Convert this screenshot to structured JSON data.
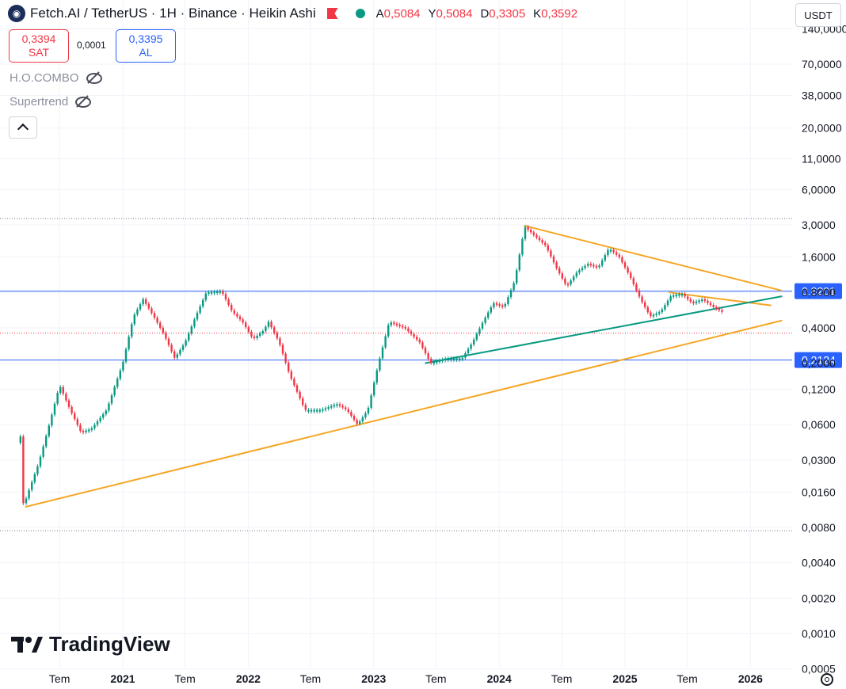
{
  "header": {
    "symbol": "Fetch.AI / TetherUS · 1H · Binance · Heikin Ashi",
    "ohlc": [
      {
        "k": "A",
        "v": "0,5084"
      },
      {
        "k": "Y",
        "v": "0,5084"
      },
      {
        "k": "D",
        "v": "0,3305"
      },
      {
        "k": "K",
        "v": "0,3592"
      }
    ]
  },
  "trade": {
    "sell_price": "0,3394",
    "sell_label": "SAT",
    "spread": "0,0001",
    "buy_price": "0,3395",
    "buy_label": "AL"
  },
  "indicators": [
    {
      "name": "H.O.COMBO",
      "state": "hidden"
    },
    {
      "name": "Supertrend",
      "state": "hidden"
    }
  ],
  "currency": "USDT",
  "branding": "TradingView",
  "colors": {
    "up": "#089981",
    "down": "#f23645",
    "triangle_lines": "#f5a623",
    "support_line": "#089981",
    "horizontal_levels": "#2962ff",
    "axis_text": "#131722"
  },
  "chart_data": {
    "type": "candlestick",
    "yscale": "log",
    "price_axis_labels": [
      "140,0000",
      "70,0000",
      "38,0000",
      "20,0000",
      "11,0000",
      "6,0000",
      "3,0000",
      "1,6000",
      "0,8000",
      "0,4000",
      "0,2000",
      "0,1200",
      "0,0600",
      "0,0300",
      "0,0160",
      "0,0080",
      "0,0040",
      "0,0020",
      "0,0010",
      "0,0005"
    ],
    "time_axis_labels": [
      "Tem",
      "2021",
      "Tem",
      "2022",
      "Tem",
      "2023",
      "Tem",
      "2024",
      "Tem",
      "2025",
      "Tem",
      "2026"
    ],
    "price_badges": [
      {
        "label": "0,8201",
        "value": 0.8201
      },
      {
        "label": "0,2124",
        "value": 0.2124
      }
    ],
    "dotted_levels": [
      3.4,
      0.36,
      0.0075
    ],
    "path": [
      [
        "2020-03-01",
        0.042
      ],
      [
        "2020-03-10",
        0.048
      ],
      [
        "2020-03-18",
        0.012
      ],
      [
        "2020-04-01",
        0.016
      ],
      [
        "2020-05-01",
        0.028
      ],
      [
        "2020-06-01",
        0.06
      ],
      [
        "2020-07-01",
        0.13
      ],
      [
        "2020-08-01",
        0.08
      ],
      [
        "2020-09-01",
        0.052
      ],
      [
        "2020-10-01",
        0.055
      ],
      [
        "2020-11-15",
        0.08
      ],
      [
        "2021-01-01",
        0.2
      ],
      [
        "2021-02-01",
        0.5
      ],
      [
        "2021-03-01",
        0.7
      ],
      [
        "2021-04-01",
        0.5
      ],
      [
        "2021-05-01",
        0.35
      ],
      [
        "2021-06-01",
        0.22
      ],
      [
        "2021-07-01",
        0.3
      ],
      [
        "2021-08-01",
        0.5
      ],
      [
        "2021-09-01",
        0.8
      ],
      [
        "2021-10-15",
        0.82
      ],
      [
        "2021-11-15",
        0.55
      ],
      [
        "2021-12-15",
        0.45
      ],
      [
        "2022-01-15",
        0.32
      ],
      [
        "2022-02-15",
        0.38
      ],
      [
        "2022-03-01",
        0.45
      ],
      [
        "2022-04-01",
        0.3
      ],
      [
        "2022-05-01",
        0.16
      ],
      [
        "2022-06-15",
        0.08
      ],
      [
        "2022-08-01",
        0.08
      ],
      [
        "2022-09-15",
        0.09
      ],
      [
        "2022-10-15",
        0.08
      ],
      [
        "2022-11-15",
        0.06
      ],
      [
        "2022-12-15",
        0.08
      ],
      [
        "2023-01-15",
        0.2
      ],
      [
        "2023-02-15",
        0.45
      ],
      [
        "2023-04-01",
        0.4
      ],
      [
        "2023-05-15",
        0.3
      ],
      [
        "2023-06-15",
        0.2
      ],
      [
        "2023-08-01",
        0.22
      ],
      [
        "2023-09-15",
        0.22
      ],
      [
        "2023-10-15",
        0.3
      ],
      [
        "2023-11-15",
        0.45
      ],
      [
        "2023-12-15",
        0.65
      ],
      [
        "2024-01-15",
        0.6
      ],
      [
        "2024-02-15",
        1.0
      ],
      [
        "2024-03-15",
        2.9
      ],
      [
        "2024-04-15",
        2.4
      ],
      [
        "2024-05-15",
        2.0
      ],
      [
        "2024-06-15",
        1.3
      ],
      [
        "2024-07-15",
        0.9
      ],
      [
        "2024-08-15",
        1.2
      ],
      [
        "2024-09-15",
        1.4
      ],
      [
        "2024-10-15",
        1.3
      ],
      [
        "2024-11-15",
        1.9
      ],
      [
        "2024-12-15",
        1.6
      ],
      [
        "2025-01-15",
        1.1
      ],
      [
        "2025-02-15",
        0.7
      ],
      [
        "2025-03-15",
        0.5
      ],
      [
        "2025-04-15",
        0.55
      ],
      [
        "2025-05-15",
        0.75
      ],
      [
        "2025-06-15",
        0.78
      ],
      [
        "2025-07-15",
        0.65
      ],
      [
        "2025-08-15",
        0.7
      ],
      [
        "2025-09-15",
        0.6
      ],
      [
        "2025-10-10",
        0.55
      ],
      [
        "2025-10-15",
        0.36
      ]
    ],
    "trendlines": [
      {
        "id": "upper-resistance",
        "color": "#f5a623",
        "from": [
          "2024-03-15",
          2.95
        ],
        "to": [
          "2026-04-01",
          0.83
        ]
      },
      {
        "id": "inner-resistance",
        "color": "#f5a623",
        "from": [
          "2025-05-10",
          0.8
        ],
        "to": [
          "2026-03-01",
          0.62
        ]
      },
      {
        "id": "green-support",
        "color": "#089981",
        "from": [
          "2023-06-01",
          0.2
        ],
        "to": [
          "2026-04-01",
          0.74
        ]
      },
      {
        "id": "lower-support",
        "color": "#f5a623",
        "from": [
          "2020-03-25",
          0.012
        ],
        "to": [
          "2026-04-01",
          0.46
        ]
      }
    ]
  }
}
